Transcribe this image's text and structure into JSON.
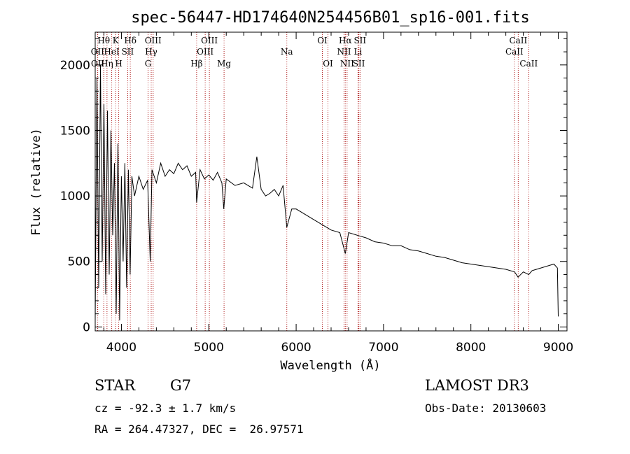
{
  "chart_data": {
    "type": "line",
    "title": "spec-56447-HD174640N254456B01_sp16-001.fits",
    "xlabel": "Wavelength (Å)",
    "ylabel": "Flux (relative)",
    "xlim": [
      3700,
      9100
    ],
    "ylim": [
      -30,
      2250
    ],
    "xticks": [
      4000,
      5000,
      6000,
      7000,
      8000,
      9000
    ],
    "xtick_labels": [
      "4000",
      "5000",
      "6000",
      "7000",
      "8000",
      "9000"
    ],
    "yticks": [
      0,
      500,
      1000,
      1500,
      2000
    ],
    "ytick_labels": [
      "0",
      "500",
      "1000",
      "1500",
      "2000"
    ],
    "series": [
      {
        "name": "spectrum",
        "x": [
          3700,
          3720,
          3740,
          3760,
          3780,
          3800,
          3820,
          3840,
          3860,
          3880,
          3900,
          3920,
          3940,
          3960,
          3980,
          4000,
          4020,
          4040,
          4060,
          4080,
          4100,
          4120,
          4150,
          4200,
          4250,
          4300,
          4330,
          4350,
          4400,
          4450,
          4500,
          4550,
          4600,
          4650,
          4700,
          4750,
          4800,
          4850,
          4861,
          4900,
          4950,
          5000,
          5050,
          5100,
          5150,
          5172,
          5200,
          5300,
          5400,
          5500,
          5550,
          5600,
          5650,
          5700,
          5750,
          5800,
          5850,
          5893,
          5950,
          6000,
          6100,
          6200,
          6300,
          6400,
          6500,
          6563,
          6600,
          6700,
          6800,
          6900,
          7000,
          7100,
          7200,
          7300,
          7400,
          7500,
          7600,
          7700,
          7800,
          7900,
          8000,
          8100,
          8200,
          8300,
          8400,
          8500,
          8540,
          8600,
          8662,
          8700,
          8800,
          8900,
          8950,
          8990,
          9000
        ],
        "y": [
          50,
          1900,
          300,
          2000,
          500,
          1700,
          250,
          1650,
          400,
          1500,
          700,
          1250,
          100,
          1400,
          50,
          1150,
          500,
          1250,
          300,
          1200,
          400,
          1150,
          1000,
          1150,
          1050,
          1120,
          500,
          1200,
          1100,
          1250,
          1150,
          1200,
          1170,
          1250,
          1200,
          1230,
          1150,
          1180,
          950,
          1200,
          1130,
          1160,
          1120,
          1180,
          1100,
          900,
          1130,
          1080,
          1100,
          1060,
          1300,
          1050,
          1000,
          1020,
          1050,
          1000,
          1080,
          760,
          900,
          900,
          860,
          820,
          780,
          740,
          720,
          560,
          720,
          700,
          680,
          650,
          640,
          620,
          620,
          590,
          580,
          560,
          540,
          530,
          510,
          490,
          480,
          470,
          460,
          450,
          440,
          420,
          380,
          420,
          400,
          430,
          450,
          470,
          480,
          450,
          80
        ]
      }
    ],
    "lines_top": [
      {
        "label": "Hθ",
        "x": 3798
      },
      {
        "label": "K",
        "x": 3934
      },
      {
        "label": "Hδ",
        "x": 4102
      },
      {
        "label": "OIII",
        "x": 4363
      },
      {
        "label": "OIII",
        "x": 5007
      },
      {
        "label": "OI",
        "x": 6300
      },
      {
        "label": "Hα",
        "x": 6563
      },
      {
        "label": "SII",
        "x": 6731
      },
      {
        "label": "CaII",
        "x": 8542
      }
    ],
    "lines_mid": [
      {
        "label": "OII",
        "x": 3727
      },
      {
        "label": "HeI",
        "x": 3889
      },
      {
        "label": "SII",
        "x": 4072
      },
      {
        "label": "Hγ",
        "x": 4341
      },
      {
        "label": "OIII",
        "x": 4959
      },
      {
        "label": "Na",
        "x": 5893
      },
      {
        "label": "NII",
        "x": 6548
      },
      {
        "label": "Li",
        "x": 6708
      },
      {
        "label": "CaII",
        "x": 8498
      }
    ],
    "lines_bot": [
      {
        "label": "OII",
        "x": 3729
      },
      {
        "label": "Hη",
        "x": 3835
      },
      {
        "label": "H",
        "x": 3969
      },
      {
        "label": "G",
        "x": 4305
      },
      {
        "label": "Hβ",
        "x": 4861
      },
      {
        "label": "Mg",
        "x": 5175
      },
      {
        "label": "OI",
        "x": 6364
      },
      {
        "label": "NII",
        "x": 6583
      },
      {
        "label": "SII",
        "x": 6717
      },
      {
        "label": "CaII",
        "x": 8662
      }
    ],
    "colors": {
      "line": "#000000",
      "marker": "#b22222"
    }
  },
  "info": {
    "object_class": "STAR",
    "subclass": "G7",
    "survey": "LAMOST DR3",
    "cz": "cz = -92.3 ± 1.7 km/s",
    "obs_date": "Obs-Date: 20130603",
    "coords": "RA = 264.47327, DEC =  26.97571"
  }
}
